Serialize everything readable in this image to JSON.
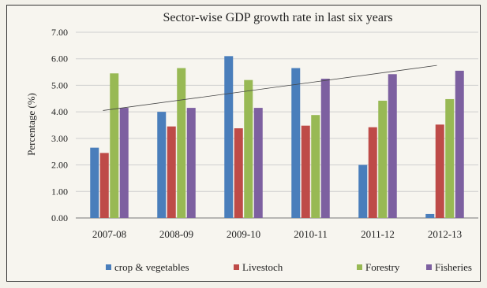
{
  "chart_data": {
    "type": "bar",
    "title": "Sector-wise GDP growth rate in last six years",
    "xlabel": "",
    "ylabel": "Percentage (%)",
    "ylim": [
      0,
      7
    ],
    "yticks": [
      "0.00",
      "1.00",
      "2.00",
      "3.00",
      "4.00",
      "5.00",
      "6.00",
      "7.00"
    ],
    "categories": [
      "2007-08",
      "2008-09",
      "2009-10",
      "2010-11",
      "2011-12",
      "2012-13"
    ],
    "series": [
      {
        "name": "crop & vegetables",
        "color": "#4a7ebb",
        "values": [
          2.65,
          4.0,
          6.1,
          5.65,
          2.0,
          0.15
        ]
      },
      {
        "name": "Livestoch",
        "color": "#be4b48",
        "values": [
          2.45,
          3.45,
          3.38,
          3.48,
          3.42,
          3.52
        ]
      },
      {
        "name": "Forestry",
        "color": "#98b954",
        "values": [
          5.45,
          5.65,
          5.2,
          3.88,
          4.42,
          4.48
        ]
      },
      {
        "name": "Fisheries",
        "color": "#7d60a0",
        "values": [
          4.15,
          4.15,
          4.15,
          5.25,
          5.42,
          5.55
        ]
      }
    ],
    "trendline": {
      "start": 4.05,
      "end": 5.75
    },
    "grid": true,
    "legend_position": "bottom"
  }
}
